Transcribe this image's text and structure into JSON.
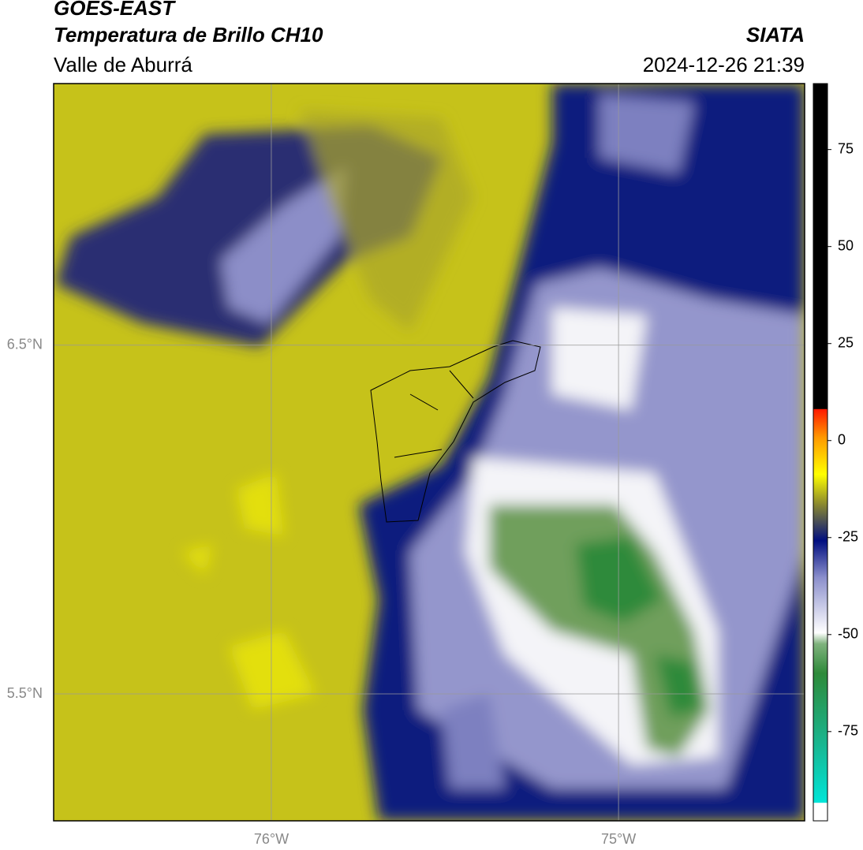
{
  "header": {
    "title": "GOES-EAST",
    "subtitle": "Temperatura de Brillo CH10",
    "region": "Valle de Aburrá",
    "source": "SIATA",
    "datetime": "2024-12-26 21:39"
  },
  "map": {
    "xlim": [
      -76.627,
      -74.464
    ],
    "ylim": [
      5.136,
      7.25
    ],
    "xticks": [
      {
        "value": -76,
        "label": "76°W"
      },
      {
        "value": -75,
        "label": "75°W"
      }
    ],
    "yticks": [
      {
        "value": 6.5,
        "label": "6.5°N"
      },
      {
        "value": 5.5,
        "label": "5.5°N"
      }
    ],
    "grid": true
  },
  "colorbar": {
    "clim": [
      -98,
      92
    ],
    "ticks": [
      75,
      50,
      25,
      0,
      -25,
      -50,
      -75
    ]
  }
}
